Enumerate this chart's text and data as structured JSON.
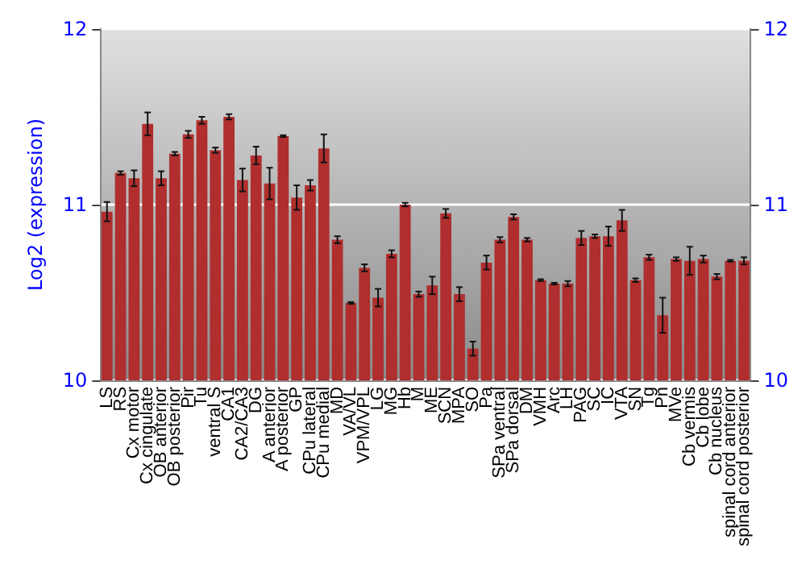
{
  "chart_data": {
    "type": "bar",
    "ylabel": "Log2 (expression)",
    "color": "#b02e2e",
    "categories": [
      "LS",
      "RS",
      "Cx motor",
      "Cx cingulate",
      "OB anterior",
      "OB posterior",
      "Pir",
      "Tu",
      "ventral S",
      "CA1",
      "CA2/CA3",
      "DG",
      "A anterior",
      "A posterior",
      "GP",
      "CPu lateral",
      "CPu medial",
      "MD",
      "VA/VL",
      "VPM/VPL",
      "LG",
      "MG",
      "Hb",
      "M",
      "ME",
      "SCN",
      "MPA",
      "SO",
      "Pa",
      "SPa ventral",
      "SPa dorsal",
      "DM",
      "VMH",
      "Arc",
      "LH",
      "PAG",
      "SC",
      "IC",
      "VTA",
      "SN",
      "Tg",
      "Pn",
      "MVe",
      "Cb vermis",
      "Cb lobe",
      "Cb nucleus",
      "spinal cord anterior",
      "spinal cord posterior"
    ],
    "values": [
      10.96,
      11.18,
      11.15,
      11.46,
      11.15,
      11.29,
      11.4,
      11.48,
      11.31,
      11.5,
      11.14,
      11.28,
      11.12,
      11.39,
      11.04,
      11.11,
      11.32,
      10.8,
      10.44,
      10.64,
      10.47,
      10.72,
      11.0,
      10.49,
      10.54,
      10.95,
      10.49,
      10.18,
      10.67,
      10.8,
      10.93,
      10.8,
      10.57,
      10.55,
      10.55,
      10.81,
      10.82,
      10.82,
      10.91,
      10.57,
      10.7,
      10.37,
      10.69,
      10.68,
      10.69,
      10.59,
      10.68,
      10.68
    ],
    "errors": [
      0.055,
      0.01,
      0.045,
      0.065,
      0.04,
      0.01,
      0.02,
      0.02,
      0.015,
      0.015,
      0.065,
      0.05,
      0.09,
      0.005,
      0.07,
      0.03,
      0.08,
      0.02,
      0.005,
      0.02,
      0.05,
      0.02,
      0.01,
      0.015,
      0.05,
      0.025,
      0.04,
      0.04,
      0.04,
      0.015,
      0.015,
      0.01,
      0.005,
      0.005,
      0.015,
      0.04,
      0.01,
      0.055,
      0.06,
      0.01,
      0.015,
      0.1,
      0.01,
      0.08,
      0.02,
      0.015,
      0.005,
      0.02
    ],
    "ylim": [
      10,
      12
    ],
    "yticks": [
      10,
      11,
      12
    ],
    "y2lim": [
      10,
      12
    ],
    "y2ticks": [
      10,
      11,
      12
    ],
    "grid": "y"
  }
}
